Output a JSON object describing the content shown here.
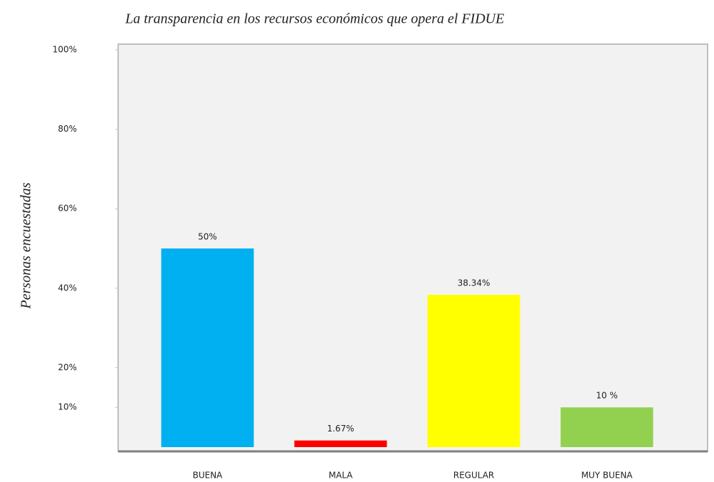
{
  "chart_data": {
    "type": "bar",
    "title": "La transparencia en los recursos económicos que opera el FIDUE",
    "y_label": "Personas encuestadas",
    "categories": [
      "BUENA",
      "MALA",
      "REGULAR",
      "MUY BUENA"
    ],
    "values": [
      50,
      1.67,
      38.34,
      10
    ],
    "value_labels": [
      "50%",
      "1.67%",
      "38.34%",
      "10 %"
    ],
    "colors": [
      "#00b0f0",
      "#ff0000",
      "#ffff00",
      "#92d050"
    ],
    "ylim": [
      0,
      100
    ],
    "yticks": [
      {
        "value": 10,
        "label": "10%"
      },
      {
        "value": 20,
        "label": "20%"
      },
      {
        "value": 40,
        "label": "40%"
      },
      {
        "value": 60,
        "label": "60%"
      },
      {
        "value": 80,
        "label": "80%"
      },
      {
        "value": 100,
        "label": "100%"
      }
    ],
    "grid": false
  }
}
